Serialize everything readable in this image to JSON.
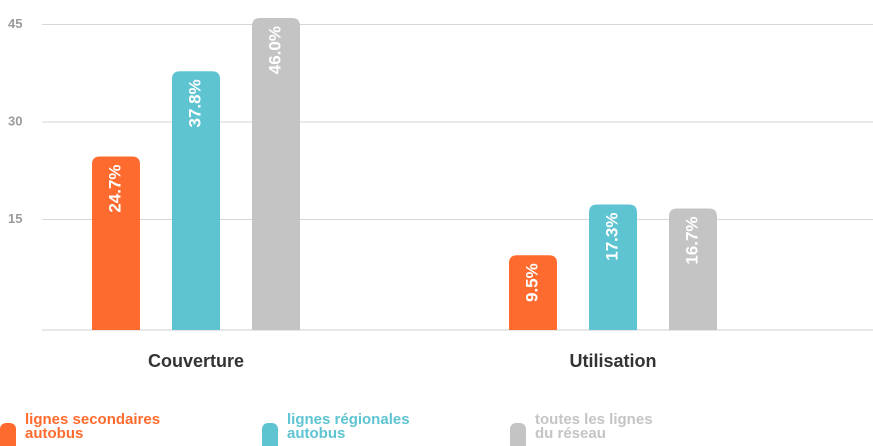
{
  "chart_data": {
    "type": "bar",
    "categories": [
      "Couverture",
      "Utilisation"
    ],
    "series": [
      {
        "name": "lignes secondaires autobus",
        "color": "#ff6b2e",
        "values": [
          24.7,
          9.5
        ],
        "value_labels": [
          "24.7%",
          "9.5%"
        ]
      },
      {
        "name": "lignes régionales autobus",
        "color": "#5ec4d2",
        "values": [
          37.8,
          17.3
        ],
        "value_labels": [
          "37.8%",
          "17.3%"
        ]
      },
      {
        "name": "toutes les lignes du réseau",
        "color": "#c4c4c4",
        "values": [
          46.0,
          16.7
        ],
        "value_labels": [
          "46.0%",
          "16.7%"
        ]
      }
    ],
    "ylim": [
      -2,
      47
    ],
    "yticks": [
      15,
      30,
      45
    ],
    "grid": true,
    "legend": "bottom"
  }
}
